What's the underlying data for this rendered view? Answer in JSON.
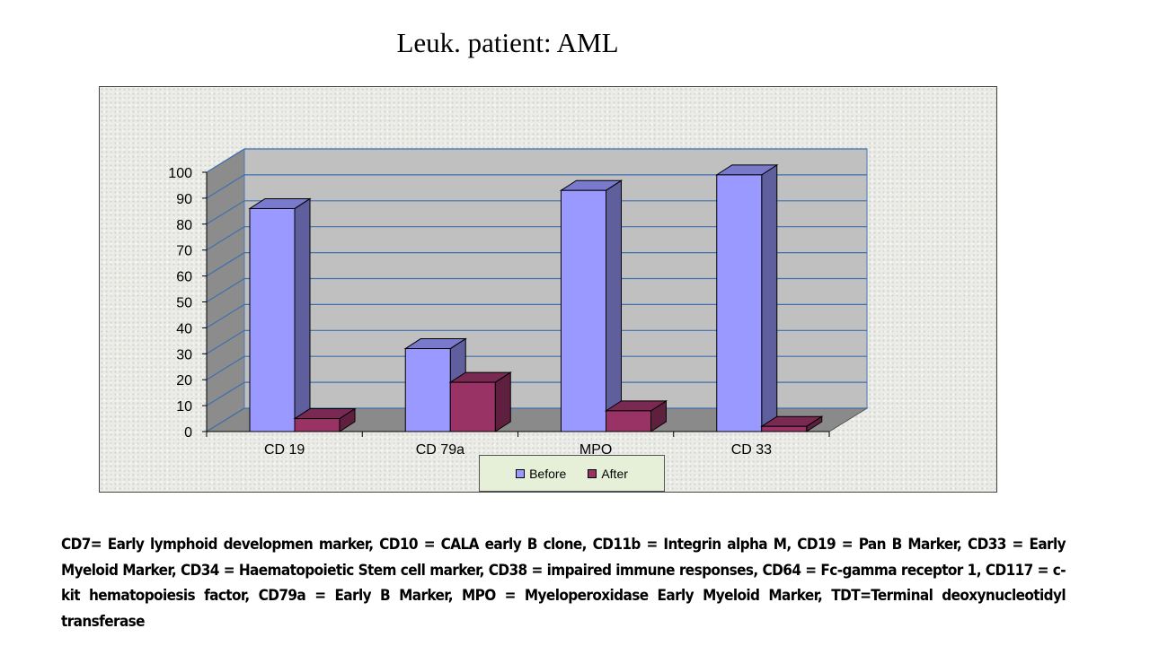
{
  "slide": {
    "title": "Leuk. patient: AML",
    "footnote": "CD7= Early lymphoid developmen marker, CD10 = CALA early B clone, CD11b = Integrin alpha M, CD19 = Pan B Marker, CD33 = Early Myeloid Marker, CD34 = Haematopoietic Stem cell marker, CD38 = impaired immune responses, CD64 = Fc-gamma receptor 1, CD117 = c-kit hematopoiesis factor, CD79a = Early B Marker, MPO = Myeloperoxidase Early Myeloid Marker, TDT=Terminal deoxynucleotidyl transferase"
  },
  "chart_data": {
    "type": "bar",
    "categories": [
      "CD 19",
      "CD 79a",
      "MPO",
      "CD 33"
    ],
    "series": [
      {
        "name": "Before",
        "values": [
          86,
          32,
          93,
          99
        ],
        "color": "#9999ff"
      },
      {
        "name": "After",
        "values": [
          5,
          19,
          8,
          2
        ],
        "color": "#993366"
      }
    ],
    "ylim": [
      0,
      100
    ],
    "yticks": [
      0,
      10,
      20,
      30,
      40,
      50,
      60,
      70,
      80,
      90,
      100
    ],
    "grid": true,
    "legend_position": "bottom",
    "style": "3d-clustered-column"
  }
}
